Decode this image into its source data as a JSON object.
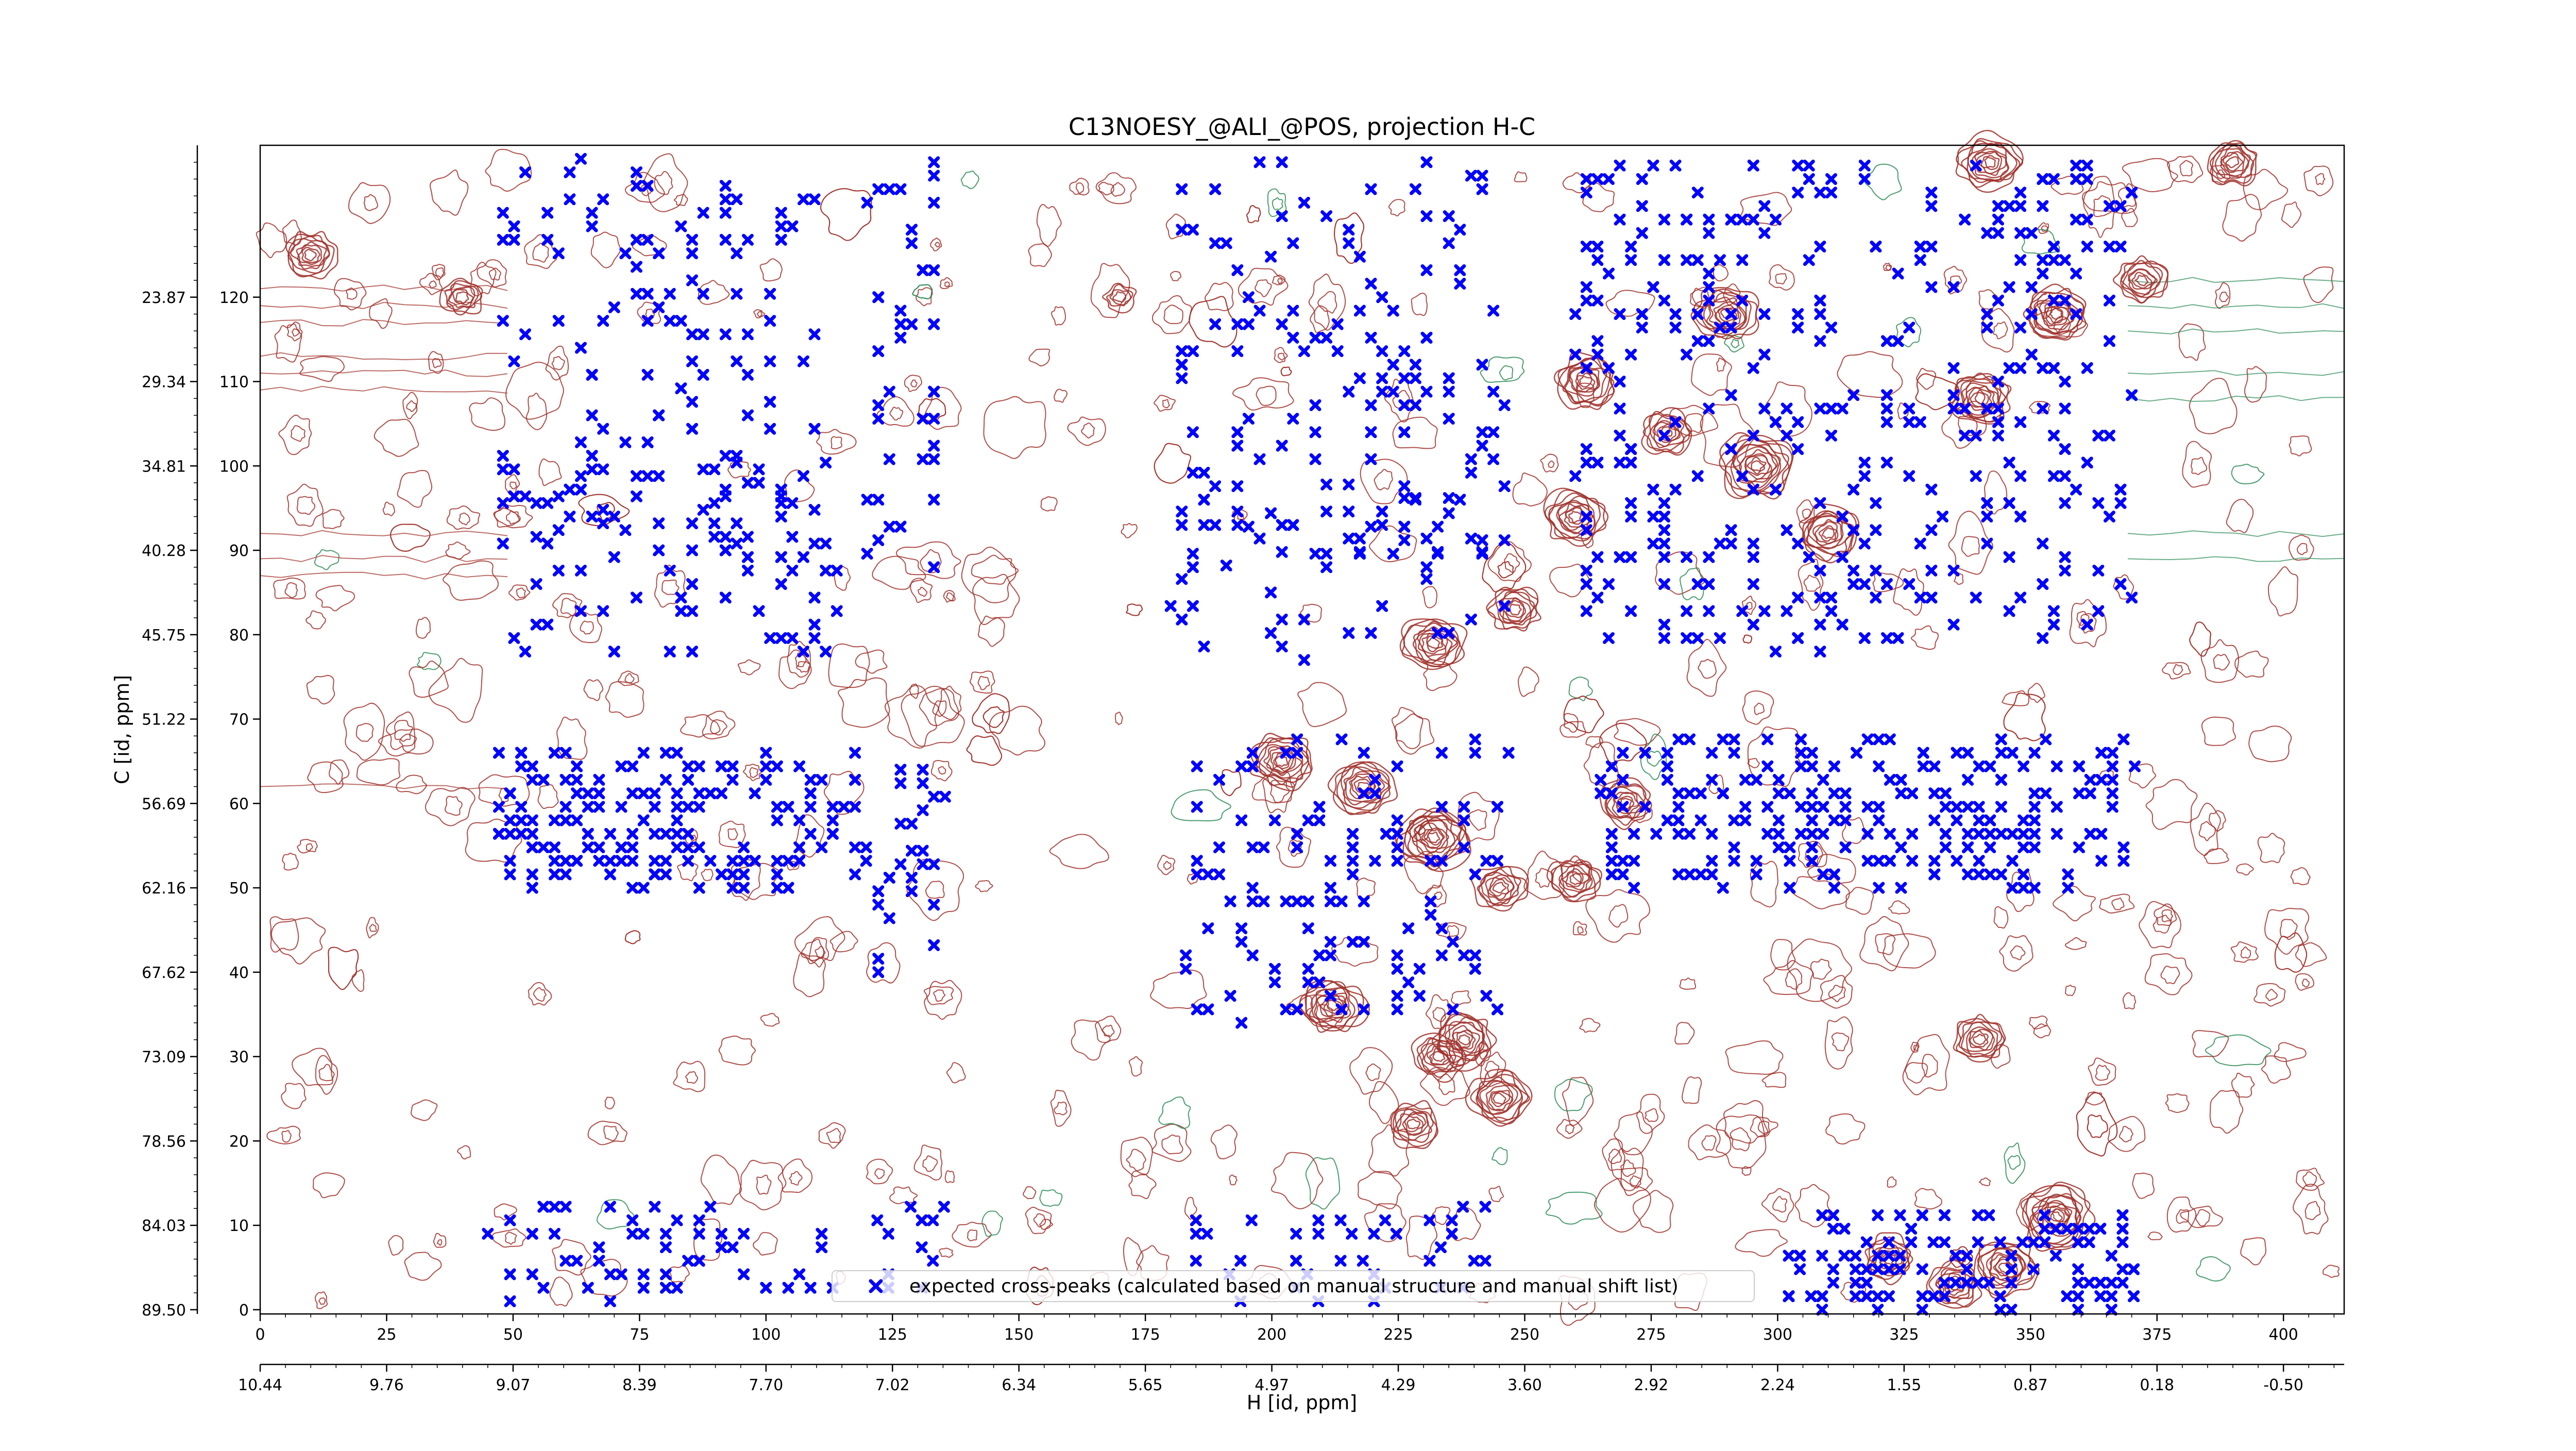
{
  "chart_data": {
    "type": "scatter",
    "title": "C13NOESY_@ALI_@POS, projection H-C",
    "xlabel": "H [id, ppm]",
    "ylabel": "C [id, ppm]",
    "xlim": [
      0,
      412
    ],
    "ylim": [
      -0.5,
      138
    ],
    "x_ticks_index": [
      "0",
      "25",
      "50",
      "75",
      "100",
      "125",
      "150",
      "175",
      "200",
      "225",
      "250",
      "275",
      "300",
      "325",
      "350",
      "375",
      "400"
    ],
    "x_ticks_ppm": [
      "10.44",
      "9.76",
      "9.07",
      "8.39",
      "7.70",
      "7.02",
      "6.34",
      "5.65",
      "4.97",
      "4.29",
      "3.60",
      "2.92",
      "2.24",
      "1.55",
      "0.87",
      "0.18",
      "-0.50"
    ],
    "y_ticks_index": [
      "0",
      "10",
      "20",
      "30",
      "40",
      "50",
      "60",
      "70",
      "80",
      "90",
      "100",
      "110",
      "120"
    ],
    "y_ticks_ppm": [
      "89.50",
      "84.03",
      "78.56",
      "73.09",
      "67.62",
      "62.16",
      "56.69",
      "51.22",
      "45.75",
      "40.28",
      "34.81",
      "29.34",
      "23.87"
    ],
    "grid": false,
    "legend_position": "lower center",
    "series": [
      {
        "name": "expected cross-peaks (calculated based on manual structure and manual shift list)",
        "color": "#0000ff",
        "marker": "x",
        "clusters": [
          {
            "x": [
              48,
              110
            ],
            "y": [
              90,
              136
            ],
            "n": 130
          },
          {
            "x": [
              48,
              115
            ],
            "y": [
              78,
              100
            ],
            "n": 70
          },
          {
            "x": [
              120,
              135
            ],
            "y": [
              88,
              136
            ],
            "n": 40
          },
          {
            "x": [
              180,
              246
            ],
            "y": [
              88,
              136
            ],
            "n": 130
          },
          {
            "x": [
              180,
              246
            ],
            "y": [
              77,
              98
            ],
            "n": 50
          },
          {
            "x": [
              260,
              370
            ],
            "y": [
              78,
              136
            ],
            "n": 360
          },
          {
            "x": [
              45,
              120
            ],
            "y": [
              50,
              66
            ],
            "n": 170
          },
          {
            "x": [
              120,
              135
            ],
            "y": [
              40,
              66
            ],
            "n": 25
          },
          {
            "x": [
              183,
              246
            ],
            "y": [
              34,
              68
            ],
            "n": 120
          },
          {
            "x": [
              265,
              370
            ],
            "y": [
              50,
              68
            ],
            "n": 230
          },
          {
            "x": [
              45,
              135
            ],
            "y": [
              1,
              13
            ],
            "n": 70
          },
          {
            "x": [
              185,
              245
            ],
            "y": [
              1,
              13
            ],
            "n": 40
          },
          {
            "x": [
              300,
              370
            ],
            "y": [
              0,
              12
            ],
            "n": 120
          }
        ]
      }
    ],
    "contours": {
      "positive_color": "#a0302a",
      "negative_color": "#2e8b57",
      "peaks": [
        {
          "x": 10,
          "y": 125,
          "level": 3
        },
        {
          "x": 40,
          "y": 120,
          "level": 2
        },
        {
          "x": 170,
          "y": 120,
          "level": 1
        },
        {
          "x": 232,
          "y": 79,
          "level": 4
        },
        {
          "x": 248,
          "y": 83,
          "level": 3
        },
        {
          "x": 260,
          "y": 94,
          "level": 4
        },
        {
          "x": 262,
          "y": 110,
          "level": 4
        },
        {
          "x": 278,
          "y": 104,
          "level": 3
        },
        {
          "x": 290,
          "y": 118,
          "level": 4
        },
        {
          "x": 296,
          "y": 100,
          "level": 5
        },
        {
          "x": 310,
          "y": 92,
          "level": 4
        },
        {
          "x": 340,
          "y": 108,
          "level": 4
        },
        {
          "x": 342,
          "y": 136,
          "level": 4
        },
        {
          "x": 355,
          "y": 118,
          "level": 4
        },
        {
          "x": 372,
          "y": 122,
          "level": 3
        },
        {
          "x": 390,
          "y": 136,
          "level": 3
        },
        {
          "x": 202,
          "y": 65,
          "level": 4
        },
        {
          "x": 218,
          "y": 62,
          "level": 4
        },
        {
          "x": 232,
          "y": 56,
          "level": 5
        },
        {
          "x": 245,
          "y": 50,
          "level": 3
        },
        {
          "x": 260,
          "y": 51,
          "level": 3
        },
        {
          "x": 270,
          "y": 60,
          "level": 3
        },
        {
          "x": 212,
          "y": 36,
          "level": 4
        },
        {
          "x": 233,
          "y": 30,
          "level": 3
        },
        {
          "x": 238,
          "y": 32,
          "level": 4
        },
        {
          "x": 245,
          "y": 25,
          "level": 4
        },
        {
          "x": 228,
          "y": 22,
          "level": 3
        },
        {
          "x": 340,
          "y": 32,
          "level": 3
        },
        {
          "x": 322,
          "y": 6,
          "level": 3
        },
        {
          "x": 355,
          "y": 11,
          "level": 5
        },
        {
          "x": 345,
          "y": 5,
          "level": 4
        },
        {
          "x": 335,
          "y": 3,
          "level": 3
        }
      ]
    }
  }
}
